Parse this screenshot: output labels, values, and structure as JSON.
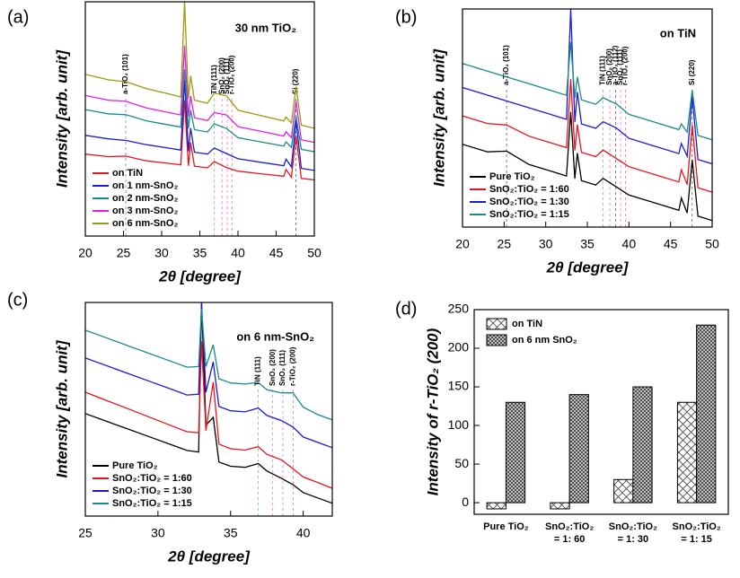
{
  "chart_data": [
    {
      "type": "line",
      "label": "(a)",
      "title": "30 nm TiO₂",
      "x_label": "2θ [degree]",
      "y_label": "Intensity [arb. unit]",
      "x": [
        20,
        23,
        25.3,
        28,
        31,
        32.5,
        33,
        33.5,
        33.8,
        34.3,
        36,
        36.9,
        38.5,
        40,
        43,
        46,
        46.3,
        47,
        47.6,
        48.3,
        50
      ],
      "xlim": [
        20,
        50
      ],
      "xticks": [
        20,
        25,
        30,
        35,
        40,
        45,
        50
      ],
      "ylim": [
        0,
        100
      ],
      "legend": "lower left",
      "series": [
        {
          "name": "on TiN",
          "color": "#e8141c",
          "values": [
            35,
            33.9,
            34.1,
            32.1,
            31,
            30.4,
            58,
            30,
            39.9,
            29.8,
            29.1,
            31.8,
            29.2,
            27.7,
            26.6,
            25.5,
            28.4,
            25.1,
            42.9,
            24.6,
            24
          ]
        },
        {
          "name": "on 1 nm-SnO₂",
          "color": "#1a1adb",
          "values": [
            43,
            41.5,
            40.8,
            39,
            37.5,
            36.7,
            66.5,
            36.2,
            46.1,
            35.8,
            35,
            37.6,
            35.2,
            33,
            31.5,
            30,
            32.8,
            29.5,
            49.2,
            28.9,
            28
          ]
        },
        {
          "name": "on 2 nm-SnO₂",
          "color": "#1a8a8a",
          "values": [
            54,
            52.2,
            51.8,
            49.2,
            47.4,
            46.5,
            71.2,
            45.9,
            53.7,
            45.4,
            44.4,
            47.9,
            45.9,
            42,
            40.2,
            38.4,
            40.2,
            37.8,
            51.4,
            37,
            36
          ]
        },
        {
          "name": "on 3 nm-SnO₂",
          "color": "#e020e0",
          "values": [
            60,
            58,
            57.5,
            54.7,
            52.7,
            51.7,
            81.3,
            51,
            59.8,
            50.5,
            49.3,
            52.7,
            51.7,
            46.7,
            44.7,
            42.7,
            44.5,
            42,
            57.6,
            41.1,
            40
          ]
        },
        {
          "name": "on 6 nm-SnO₂",
          "color": "#9a9a10",
          "values": [
            69,
            66.7,
            65.9,
            62.9,
            60.6,
            59.4,
            100,
            58.7,
            68.4,
            58,
            56.7,
            61,
            59.8,
            53.7,
            51.4,
            49.1,
            50.8,
            48.3,
            63.8,
            47.3,
            46
          ]
        }
      ],
      "annotations": [
        {
          "x": 25.3,
          "text": "a-TiO₂ (101)",
          "color": "#2222dd"
        },
        {
          "x": 36.9,
          "text": "TiN (111)",
          "color": "#22aa22"
        },
        {
          "x": 37.9,
          "text": "SnO₂ (200)",
          "color": "#dd22dd"
        },
        {
          "x": 38.6,
          "text": "SnO₂ (111)",
          "color": "#dd22dd"
        },
        {
          "x": 39.2,
          "text": "r-TiO₂ (200)",
          "color": "#dd2222"
        },
        {
          "x": 47.6,
          "text": "Si (220)",
          "color": "#000000"
        }
      ]
    },
    {
      "type": "line",
      "label": "(b)",
      "title": "on TiN",
      "x_label": "2θ [degree]",
      "y_label": "Intensity [arb. unit]",
      "x": [
        20,
        23,
        25.3,
        28,
        31,
        32.5,
        33,
        33.5,
        33.8,
        34.3,
        36,
        36.9,
        38.5,
        40,
        43,
        46,
        46.3,
        47,
        47.6,
        48.3,
        50
      ],
      "xlim": [
        20,
        50
      ],
      "xticks": [
        20,
        25,
        30,
        35,
        40,
        45,
        50
      ],
      "ylim": [
        0,
        100
      ],
      "legend": "lower left",
      "series": [
        {
          "name": "Pure TiO₂",
          "color": "#000000",
          "values": [
            38,
            34.5,
            34.8,
            28.7,
            25.2,
            23.4,
            52.8,
            22.2,
            33.9,
            21.3,
            19.3,
            22.3,
            18.4,
            14.7,
            11.2,
            7.7,
            13.3,
            6.5,
            30.8,
            5,
            3
          ]
        },
        {
          "name": "SnO₂:TiO₂ = 1:60",
          "color": "#e8141c",
          "values": [
            51,
            47.5,
            46.8,
            41.7,
            38.2,
            36.4,
            67.8,
            35.2,
            46.9,
            34.3,
            32.3,
            35.3,
            31.4,
            27.7,
            24.2,
            20.7,
            26.3,
            19.5,
            46.8,
            18,
            16
          ]
        },
        {
          "name": "SnO₂:TiO₂ = 1:30",
          "color": "#1a1adb",
          "values": [
            64,
            60.5,
            57.8,
            54.7,
            51.2,
            49.4,
            100,
            48.2,
            61.9,
            47.3,
            45.3,
            48.3,
            45.4,
            40.7,
            37.2,
            33.7,
            38.3,
            32.5,
            59.8,
            31,
            29
          ]
        },
        {
          "name": "SnO₂:TiO₂ = 1:15",
          "color": "#1a8a8a",
          "values": [
            75,
            71.5,
            68.8,
            65.7,
            62.2,
            60.4,
            84.8,
            59.2,
            68.9,
            58.3,
            56.3,
            59.3,
            56.4,
            51.7,
            48.2,
            44.7,
            47.3,
            43.5,
            62.8,
            42,
            40
          ]
        }
      ],
      "annotations": [
        {
          "x": 25.3,
          "text": "a-TiO₂ (101)",
          "color": "#000000"
        },
        {
          "x": 36.9,
          "text": "TiN (111)",
          "color": "#22aa22"
        },
        {
          "x": 37.7,
          "text": "SnO₂ (200)",
          "color": "#dd22dd"
        },
        {
          "x": 38.4,
          "text": "a-TiO₂ (112)",
          "color": "#000000"
        },
        {
          "x": 39.0,
          "text": "SnO₂ (111)",
          "color": "#dd22dd"
        },
        {
          "x": 39.6,
          "text": "r-TiO₂ (200)",
          "color": "#dd2222"
        },
        {
          "x": 47.6,
          "text": "Si (220)",
          "color": "#000000"
        }
      ]
    },
    {
      "type": "line",
      "label": "(c)",
      "title": "on 6 nm-SnO₂",
      "x_label": "2θ [degree]",
      "y_label": "Intensity [arb. unit]",
      "x": [
        25,
        26.5,
        28,
        29.5,
        31,
        32,
        32.8,
        33,
        33.3,
        33.8,
        34.2,
        35,
        36,
        36.9,
        37.5,
        38.5,
        39.3,
        40,
        41,
        42
      ],
      "xlim": [
        25,
        42
      ],
      "xticks": [
        25,
        30,
        35,
        40
      ],
      "ylim": [
        0,
        100
      ],
      "legend": "lower left",
      "series": [
        {
          "name": "Pure TiO₂",
          "color": "#000000",
          "values": [
            48,
            44.3,
            40.6,
            36.9,
            33.2,
            30.7,
            30,
            100,
            42.5,
            46.2,
            25.3,
            23.3,
            22.8,
            24.6,
            21.1,
            17.7,
            14.7,
            11,
            8.5,
            6
          ]
        },
        {
          "name": "SnO₂:TiO₂ = 1:60",
          "color": "#e8141c",
          "values": [
            58,
            54,
            50.1,
            46.1,
            42.1,
            39.5,
            39,
            81.8,
            40,
            62.7,
            33.7,
            31.5,
            30.9,
            32.5,
            28.9,
            26.3,
            22.2,
            18.3,
            15.7,
            13
          ]
        },
        {
          "name": "SnO₂:TiO₂ = 1:30",
          "color": "#1a1adb",
          "values": [
            74,
            70.3,
            66.6,
            62.9,
            59.2,
            56.7,
            57,
            100,
            58,
            72.2,
            51.3,
            49.3,
            48.8,
            50.6,
            47.1,
            44.7,
            41.7,
            37,
            34.5,
            32
          ]
        },
        {
          "name": "SnO₂:TiO₂ = 1:15",
          "color": "#1a8a8a",
          "values": [
            87,
            83.3,
            79.6,
            75.9,
            72.2,
            69.7,
            70,
            97,
            70,
            80.2,
            64.3,
            62.3,
            61.8,
            62.6,
            59.1,
            57.7,
            57.7,
            51,
            47.5,
            45
          ]
        }
      ],
      "annotations": [
        {
          "x": 36.9,
          "text": "TiN (111)",
          "color": "#22aa22"
        },
        {
          "x": 37.9,
          "text": "SnO₂ (200)",
          "color": "#dd22dd"
        },
        {
          "x": 38.6,
          "text": "SnO₂ (111)",
          "color": "#dd22dd"
        },
        {
          "x": 39.3,
          "text": "r-TiO₂ (200)",
          "color": "#dd2222"
        }
      ]
    },
    {
      "type": "bar",
      "label": "(d)",
      "y_label": "Intensity of r-TiO₂ (200)",
      "categories": [
        [
          "Pure TiO₂"
        ],
        [
          "SnO₂:TiO₂",
          "= 1: 60"
        ],
        [
          "SnO₂:TiO₂",
          "= 1: 30"
        ],
        [
          "SnO₂:TiO₂",
          "= 1: 15"
        ]
      ],
      "ylim": [
        -15,
        250
      ],
      "yticks": [
        0,
        50,
        100,
        150,
        200,
        250
      ],
      "legend": "upper left",
      "series": [
        {
          "name": "on TiN",
          "color": "#444444",
          "hatch": "sparse",
          "values": [
            -8,
            -8,
            30,
            130
          ]
        },
        {
          "name": "on 6 nm SnO₂",
          "color": "#333333",
          "hatch": "dense",
          "values": [
            130,
            140,
            150,
            230
          ]
        }
      ]
    }
  ]
}
